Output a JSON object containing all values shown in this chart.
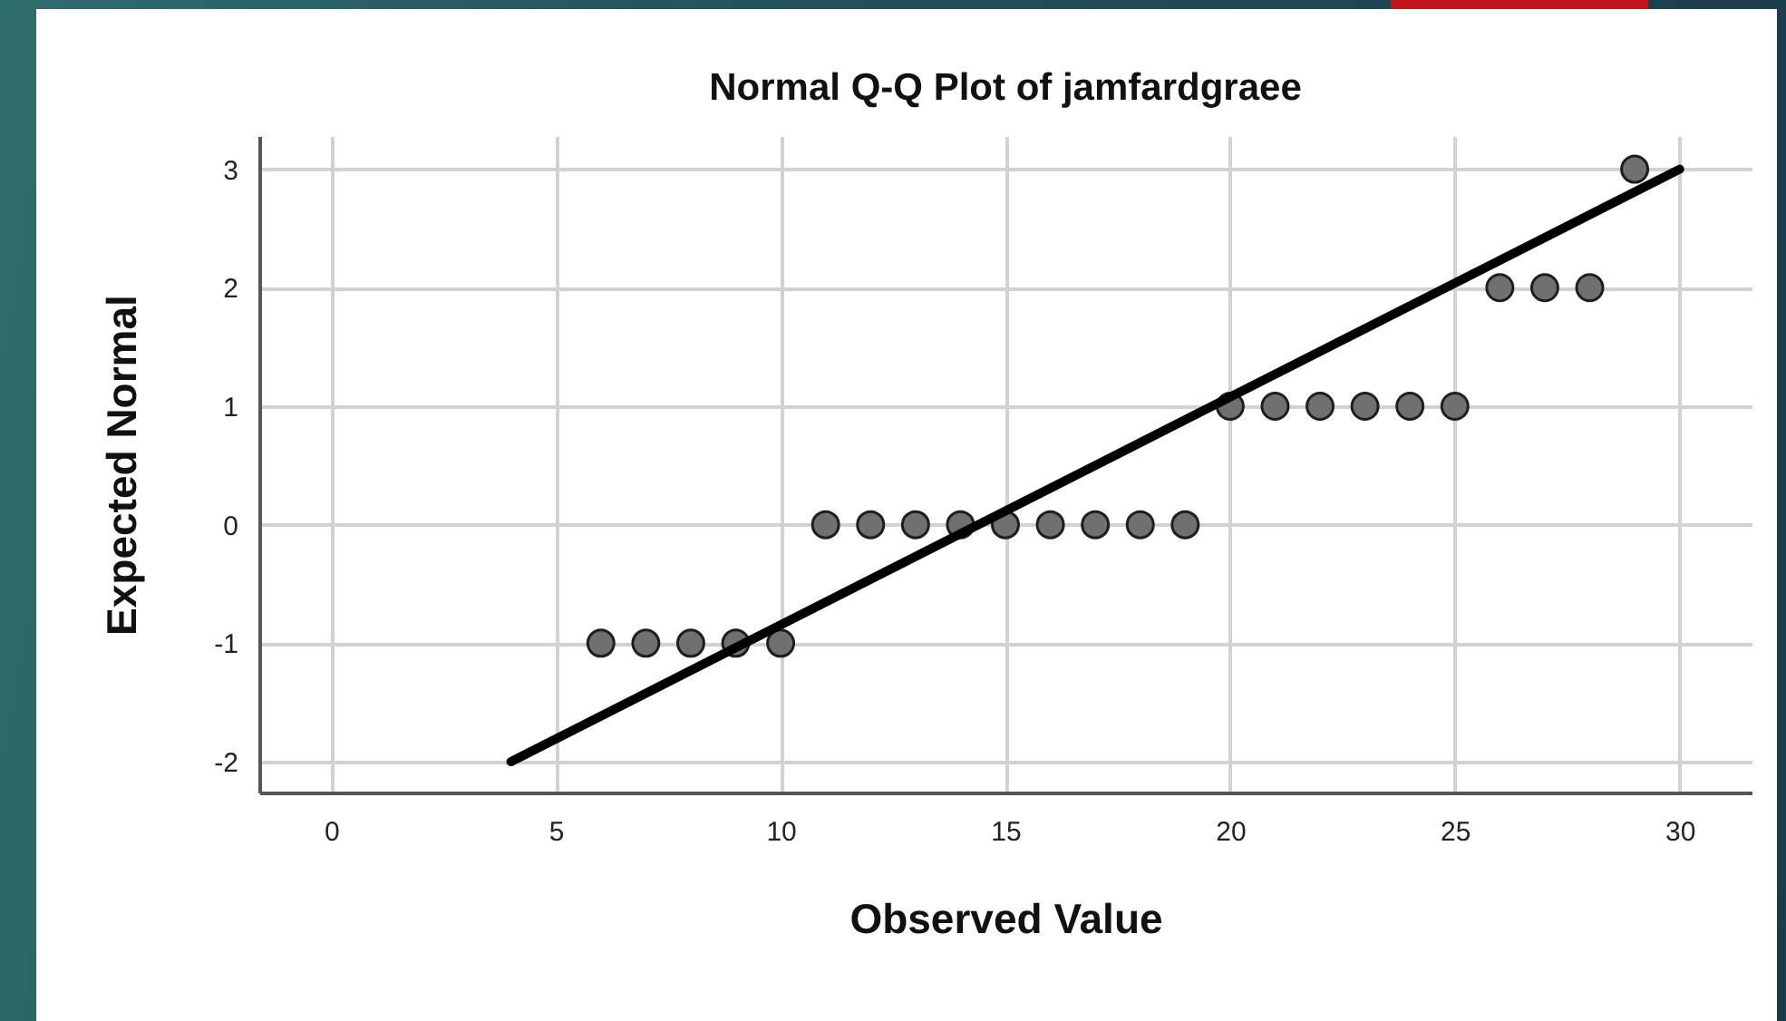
{
  "chart_data": {
    "type": "scatter",
    "title": "Normal Q-Q Plot of jamfardgraee",
    "xlabel": "Observed Value",
    "ylabel": "Expected Normal",
    "series": [
      {
        "color": "#707070",
        "marker": "circle",
        "x": [
          6,
          7,
          8,
          9,
          10,
          11,
          12,
          13,
          14,
          15,
          16,
          17,
          18,
          19,
          20,
          21,
          22,
          23,
          24,
          25,
          26,
          27,
          28,
          29
        ],
        "values": [
          -1,
          -1,
          -1,
          -1,
          -1,
          0,
          0,
          0,
          0,
          0,
          0,
          0,
          0,
          0,
          1,
          1,
          1,
          1,
          1,
          1,
          2,
          2,
          2,
          3
        ]
      },
      {
        "type": "line",
        "color": "#000000",
        "x": [
          4,
          30
        ],
        "values": [
          -2,
          3
        ]
      }
    ],
    "xlim": [
      -1.6,
      31.6
    ],
    "ylim": [
      -2.26,
      3.28
    ],
    "xticks": [
      0,
      5,
      10,
      15,
      20,
      25,
      30
    ],
    "yticks": [
      -2,
      -1,
      0,
      1,
      2,
      3
    ],
    "grid": true
  }
}
